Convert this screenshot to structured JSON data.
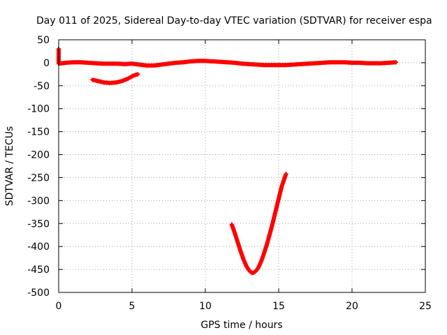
{
  "chart_data": {
    "type": "scatter",
    "title": "Day 011 of 2025, Sidereal Day-to-day VTEC variation (SDTVAR) for receiver espa",
    "xlabel": "GPS time / hours",
    "ylabel": "SDTVAR / TECUs",
    "xlim": [
      0,
      25
    ],
    "ylim": [
      -500,
      50
    ],
    "xticks": [
      0,
      5,
      10,
      15,
      20,
      25
    ],
    "yticks": [
      50,
      0,
      -50,
      -100,
      -150,
      -200,
      -250,
      -300,
      -350,
      -400,
      -450,
      -500
    ],
    "grid": true,
    "legend": "none",
    "series_color": "#ff0000",
    "series": [
      {
        "values": [
          [
            0.0,
            30
          ],
          [
            0.0,
            -2
          ],
          [
            0.5,
            0
          ],
          [
            1.0,
            1
          ],
          [
            1.5,
            1
          ],
          [
            2.0,
            0
          ],
          [
            2.5,
            -1
          ],
          [
            3.0,
            -2
          ],
          [
            3.5,
            -2
          ],
          [
            4.0,
            -2
          ],
          [
            4.5,
            -3
          ],
          [
            5.0,
            -2
          ],
          [
            5.5,
            -4
          ],
          [
            6.0,
            -6
          ],
          [
            6.5,
            -6
          ],
          [
            7.0,
            -4
          ],
          [
            7.5,
            -2
          ],
          [
            8.0,
            0
          ],
          [
            8.5,
            1
          ],
          [
            9.0,
            3
          ],
          [
            9.5,
            4
          ],
          [
            10.0,
            4
          ],
          [
            10.5,
            3
          ],
          [
            11.0,
            2
          ],
          [
            11.5,
            1
          ],
          [
            12.0,
            0
          ],
          [
            12.5,
            -2
          ],
          [
            13.0,
            -3
          ],
          [
            13.5,
            -4
          ],
          [
            14.0,
            -5
          ],
          [
            14.5,
            -5
          ],
          [
            15.0,
            -5
          ],
          [
            15.5,
            -5
          ],
          [
            16.0,
            -4
          ],
          [
            16.5,
            -3
          ],
          [
            17.0,
            -2
          ],
          [
            17.5,
            -1
          ],
          [
            18.0,
            0
          ],
          [
            18.5,
            1
          ],
          [
            19.0,
            1
          ],
          [
            19.5,
            1
          ],
          [
            20.0,
            0
          ],
          [
            20.5,
            0
          ],
          [
            21.0,
            -1
          ],
          [
            21.5,
            -1
          ],
          [
            22.0,
            -1
          ],
          [
            22.5,
            0
          ],
          [
            23.0,
            1
          ]
        ]
      },
      {
        "values": [
          [
            2.3,
            -37
          ],
          [
            2.7,
            -40
          ],
          [
            3.1,
            -43
          ],
          [
            3.5,
            -44
          ],
          [
            3.9,
            -43
          ],
          [
            4.3,
            -40
          ],
          [
            4.7,
            -35
          ],
          [
            5.1,
            -28
          ],
          [
            5.4,
            -25
          ]
        ]
      },
      {
        "values": [
          [
            11.8,
            -352
          ],
          [
            12.0,
            -370
          ],
          [
            12.2,
            -390
          ],
          [
            12.4,
            -410
          ],
          [
            12.6,
            -428
          ],
          [
            12.8,
            -443
          ],
          [
            13.0,
            -453
          ],
          [
            13.2,
            -458
          ],
          [
            13.4,
            -455
          ],
          [
            13.6,
            -447
          ],
          [
            13.8,
            -433
          ],
          [
            14.0,
            -415
          ],
          [
            14.2,
            -395
          ],
          [
            14.4,
            -372
          ],
          [
            14.6,
            -348
          ],
          [
            14.8,
            -322
          ],
          [
            15.0,
            -296
          ],
          [
            15.2,
            -270
          ],
          [
            15.5,
            -242
          ]
        ]
      }
    ]
  }
}
